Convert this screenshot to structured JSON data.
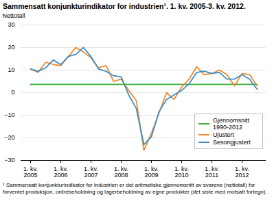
{
  "chart_data": {
    "type": "line",
    "title": "Sammensatt konjunkturindikator for industrien¹. 1. kv. 2005-3. kv. 2012.",
    "y_label": "Nettotall",
    "caption": "¹ Sammensatt konjunkturindikator for industrien er det aritmetiske gjennomsnitt av svarene (nettotall) for forventet produksjon, ordrebeholdning og lagerbeholdning av egne produkter (det siste med motsatt fortegn).",
    "categories": [
      "1. kv.\n2005",
      null,
      null,
      null,
      "1. kv.\n2006",
      null,
      null,
      null,
      "1. kv.\n2007",
      null,
      null,
      null,
      "1. kv.\n2008",
      null,
      null,
      null,
      "1. kv.\n2009",
      null,
      null,
      null,
      "1. kv.\n2010",
      null,
      null,
      null,
      "1. kv.\n2011",
      null,
      null,
      null,
      "1. kv.\n2012",
      null,
      null
    ],
    "series": [
      {
        "name": "Gjennomsnitt 1990-2012",
        "color": "#3fae3f",
        "values": [
          3.7,
          3.7,
          3.7,
          3.7,
          3.7,
          3.7,
          3.7,
          3.7,
          3.7,
          3.7,
          3.7,
          3.7,
          3.7,
          3.7,
          3.7,
          3.7,
          3.7,
          3.7,
          3.7,
          3.7,
          3.7,
          3.7,
          3.7,
          3.7,
          3.7,
          3.7,
          3.7,
          3.7,
          3.7,
          3.7,
          3.7
        ]
      },
      {
        "name": "Ujustert",
        "color": "#f0892a",
        "values": [
          10.5,
          9,
          13.5,
          12.5,
          12,
          16,
          20,
          18,
          15.5,
          11,
          12,
          5,
          6,
          1,
          -3.5,
          -25.5,
          -18,
          -9,
          0,
          -3,
          2.5,
          6,
          11.5,
          8,
          8.5,
          10,
          8,
          3,
          8.5,
          8,
          3
        ]
      },
      {
        "name": "Sesongjustert",
        "color": "#3a8fc8",
        "values": [
          10.5,
          9.5,
          11,
          14.5,
          12.5,
          16,
          17,
          20,
          16,
          10.5,
          9.5,
          7.5,
          7,
          -1,
          -7,
          -23,
          -19.5,
          -8.5,
          -3,
          -1,
          1,
          4,
          9,
          9.5,
          8.5,
          9,
          6,
          6,
          8,
          6,
          1.5
        ]
      }
    ],
    "ylim": [
      -30,
      30
    ],
    "yticks": [
      -30,
      -20,
      -10,
      0,
      10,
      20,
      30
    ],
    "grid": true,
    "legend": "lower right"
  }
}
